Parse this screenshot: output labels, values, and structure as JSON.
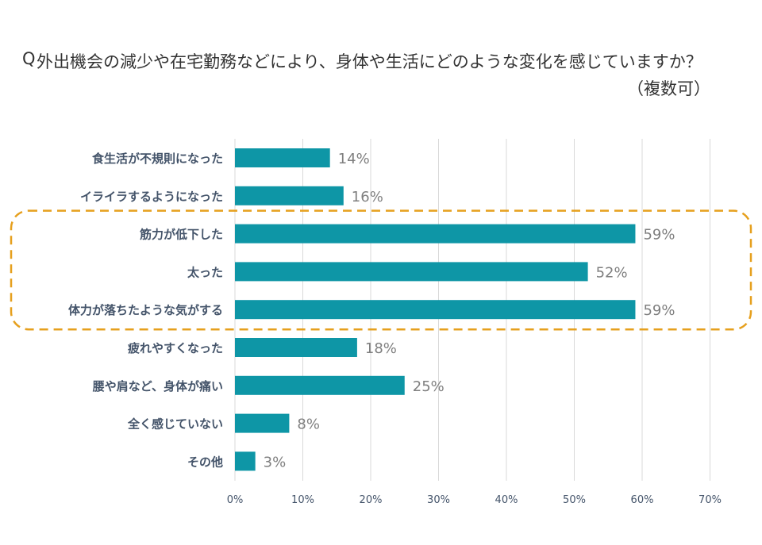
{
  "title": {
    "marker": "Q",
    "question": "外出機会の減少や在宅勤務などにより、身体や生活にどのような変化を感じていますか？",
    "note": "（複数可）"
  },
  "colors": {
    "bar": "#0e96a6",
    "grid": "#d9d9d9",
    "category_text": "#44546a",
    "value_text": "#7f7f7f",
    "tick_text": "#44546a",
    "highlight": "#e6a01e"
  },
  "chart_data": {
    "type": "bar",
    "orientation": "horizontal",
    "categories": [
      "食生活が不規則になった",
      "イライラするようになった",
      "筋力が低下した",
      "太った",
      "体力が落ちたような気がする",
      "疲れやすくなった",
      "腰や肩など、身体が痛い",
      "全く感じていない",
      "その他"
    ],
    "values": [
      14,
      16,
      59,
      52,
      59,
      18,
      25,
      8,
      3
    ],
    "value_labels": [
      "14%",
      "16%",
      "59%",
      "52%",
      "59%",
      "18%",
      "25%",
      "8%",
      "3%"
    ],
    "xlim": [
      0,
      70
    ],
    "ticks": [
      0,
      10,
      20,
      30,
      40,
      50,
      60,
      70
    ],
    "tick_labels": [
      "0%",
      "10%",
      "20%",
      "30%",
      "40%",
      "50%",
      "60%",
      "70%"
    ],
    "grid": "vertical",
    "highlighted_categories": [
      "筋力が低下した",
      "太った",
      "体力が落ちたような気がする"
    ],
    "highlight_style": "dashed rounded box"
  }
}
